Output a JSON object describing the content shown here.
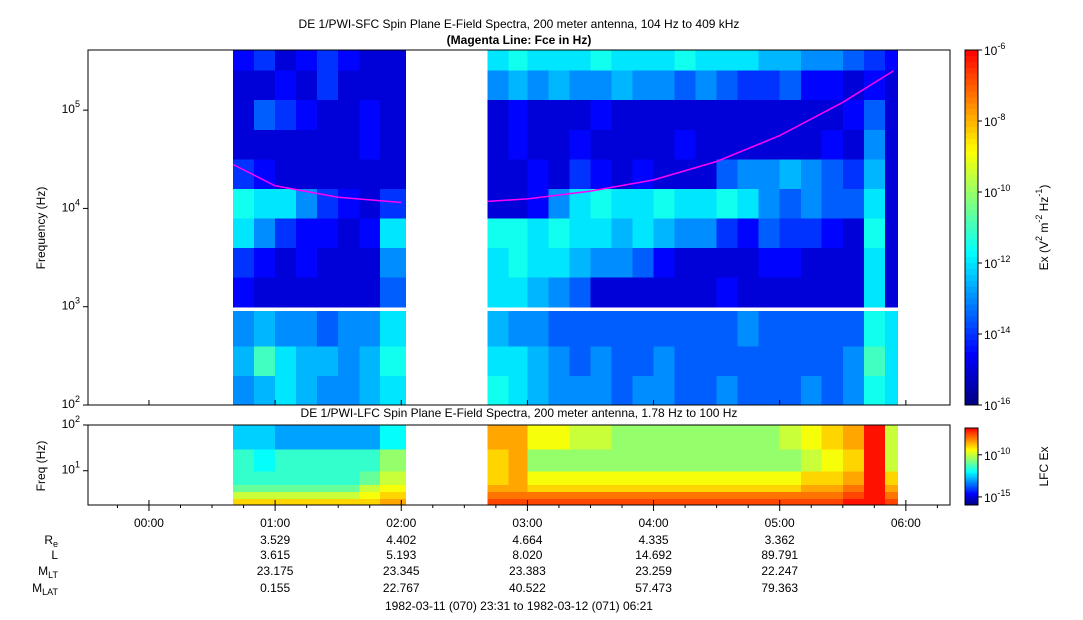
{
  "chart_data": [
    {
      "type": "spectrogram",
      "title": "DE 1/PWI-SFC  Spin Plane E-Field Spectra, 200 meter antenna, 104 Hz to 409 kHz",
      "subtitle": "(Magenta Line: Fce in Hz)",
      "y_label": "Frequency (Hz)",
      "colorbar_label": [
        "Ex (V",
        "2",
        " m",
        "-2",
        " Hz",
        "-1",
        ")"
      ],
      "xlim": [
        -0.4833,
        6.35
      ],
      "ylim": [
        100,
        409000
      ],
      "log_y": true,
      "yticks": [
        {
          "value": 100,
          "label": "10",
          "exp": "2"
        },
        {
          "value": 1000,
          "label": "10",
          "exp": "3"
        },
        {
          "value": 10000,
          "label": "10",
          "exp": "4"
        },
        {
          "value": 100000,
          "label": "10",
          "exp": "5"
        }
      ],
      "zlim": [
        1e-16,
        1e-06
      ],
      "zticks": [
        {
          "value": 1e-06,
          "label": "10",
          "exp": "-6"
        },
        {
          "value": 1e-08,
          "label": "10",
          "exp": "-8"
        },
        {
          "value": 1e-10,
          "label": "10",
          "exp": "-10"
        },
        {
          "value": 1e-12,
          "label": "10",
          "exp": "-12"
        },
        {
          "value": 1e-14,
          "label": "10",
          "exp": "-14"
        },
        {
          "value": 1e-16,
          "label": "10",
          "exp": "-16"
        }
      ],
      "colors": [
        "#000080",
        "#0000ff",
        "#0080ff",
        "#00ffff",
        "#80ff80",
        "#ffff00",
        "#ff8000",
        "#ff0000"
      ],
      "time_bins": [
        0.667,
        0.833,
        1.0,
        1.167,
        1.333,
        1.5,
        1.667,
        1.833,
        2.033,
        2.683,
        2.85,
        3.0,
        3.167,
        3.333,
        3.5,
        3.667,
        3.833,
        4.0,
        4.167,
        4.333,
        4.5,
        4.667,
        4.833,
        5.0,
        5.167,
        5.333,
        5.5,
        5.667,
        5.833,
        5.933
      ],
      "freq_bins": [
        100,
        200,
        400,
        900,
        1000,
        2000,
        4000,
        8000,
        16000,
        32000,
        64000,
        128000,
        256000,
        409000
      ],
      "z": [
        [
          1e-13,
          3e-13,
          1e-12,
          3e-13,
          1e-13,
          1e-13,
          3e-13,
          1e-12,
          null,
          3e-12,
          1e-12,
          3e-13,
          1e-13,
          1e-13,
          1e-13,
          3e-14,
          1e-13,
          1e-13,
          3e-14,
          3e-14,
          1e-13,
          3e-14,
          3e-14,
          3e-14,
          1e-13,
          3e-14,
          1e-13,
          3e-12,
          1e-12
        ],
        [
          3e-13,
          1e-11,
          1e-12,
          3e-13,
          3e-13,
          1e-13,
          3e-13,
          3e-12,
          null,
          1e-12,
          1e-12,
          3e-13,
          1e-13,
          3e-14,
          1e-13,
          3e-14,
          3e-14,
          1e-13,
          3e-14,
          3e-14,
          3e-14,
          3e-14,
          3e-14,
          3e-14,
          3e-14,
          3e-14,
          1e-13,
          1e-11,
          1e-12
        ],
        [
          1e-13,
          3e-13,
          1e-13,
          1e-13,
          3e-14,
          1e-13,
          1e-13,
          1e-12,
          null,
          3e-13,
          1e-13,
          1e-13,
          3e-14,
          3e-14,
          3e-14,
          3e-14,
          3e-14,
          3e-14,
          3e-14,
          3e-14,
          3e-14,
          1e-13,
          3e-14,
          3e-14,
          3e-14,
          3e-14,
          3e-14,
          3e-12,
          1e-12
        ],
        [
          null,
          null,
          null,
          null,
          null,
          null,
          null,
          null,
          null,
          null,
          null,
          null,
          null,
          null,
          null,
          null,
          null,
          null,
          null,
          null,
          null,
          null,
          null,
          null,
          null,
          null,
          null,
          null,
          null
        ],
        [
          3e-15,
          1e-15,
          1e-15,
          1e-15,
          1e-15,
          1e-15,
          1e-15,
          3e-14,
          null,
          1e-12,
          1e-12,
          3e-13,
          1e-13,
          3e-14,
          1e-15,
          1e-15,
          1e-15,
          1e-15,
          1e-15,
          1e-15,
          3e-15,
          1e-15,
          1e-15,
          1e-15,
          1e-15,
          1e-15,
          1e-15,
          1e-12,
          1e-15
        ],
        [
          1e-14,
          3e-15,
          1e-15,
          3e-15,
          1e-15,
          1e-15,
          1e-15,
          1e-13,
          null,
          1e-12,
          3e-12,
          1e-12,
          1e-12,
          3e-13,
          1e-13,
          1e-13,
          3e-14,
          3e-15,
          1e-15,
          1e-15,
          1e-15,
          1e-15,
          3e-15,
          3e-15,
          1e-15,
          1e-15,
          1e-15,
          1e-12,
          1e-15
        ],
        [
          1e-12,
          1e-13,
          1e-14,
          3e-15,
          3e-15,
          1e-15,
          3e-15,
          1e-12,
          null,
          3e-12,
          3e-12,
          1e-12,
          3e-12,
          1e-12,
          1e-12,
          3e-13,
          1e-12,
          3e-13,
          1e-13,
          1e-13,
          1e-14,
          3e-15,
          3e-14,
          1e-14,
          1e-14,
          3e-15,
          1e-15,
          3e-12,
          1e-15
        ],
        [
          3e-12,
          1e-12,
          1e-12,
          1e-13,
          1e-14,
          3e-15,
          1e-15,
          1e-14,
          null,
          1e-15,
          1e-15,
          3e-15,
          1e-13,
          1e-12,
          3e-12,
          1e-12,
          1e-12,
          3e-12,
          1e-12,
          1e-12,
          3e-12,
          1e-12,
          1e-13,
          3e-14,
          1e-13,
          3e-14,
          3e-14,
          1e-12,
          1e-15
        ],
        [
          1e-14,
          3e-15,
          1e-15,
          1e-15,
          1e-15,
          1e-15,
          1e-15,
          1e-15,
          null,
          1e-15,
          1e-15,
          3e-15,
          1e-15,
          1e-14,
          3e-15,
          1e-15,
          3e-15,
          1e-15,
          1e-15,
          1e-15,
          3e-14,
          1e-13,
          1e-13,
          3e-13,
          1e-13,
          3e-14,
          1e-14,
          3e-13,
          1e-15
        ],
        [
          1e-15,
          1e-15,
          1e-15,
          1e-15,
          1e-15,
          1e-15,
          3e-15,
          1e-15,
          null,
          1e-15,
          3e-15,
          1e-15,
          1e-15,
          3e-15,
          1e-15,
          1e-15,
          1e-15,
          1e-15,
          3e-15,
          1e-15,
          1e-15,
          1e-15,
          1e-15,
          1e-15,
          1e-15,
          3e-15,
          1e-15,
          1e-13,
          1e-15
        ],
        [
          1e-15,
          3e-14,
          1e-14,
          3e-15,
          1e-15,
          1e-15,
          3e-15,
          1e-15,
          null,
          1e-15,
          3e-15,
          1e-15,
          1e-15,
          1e-15,
          3e-15,
          1e-15,
          1e-15,
          1e-15,
          1e-15,
          1e-15,
          1e-15,
          1e-15,
          1e-15,
          1e-15,
          1e-15,
          1e-15,
          3e-15,
          3e-14,
          1e-15
        ],
        [
          1e-15,
          1e-15,
          3e-15,
          1e-15,
          1e-14,
          1e-15,
          1e-15,
          1e-15,
          null,
          1e-13,
          3e-13,
          1e-13,
          3e-13,
          1e-13,
          1e-13,
          3e-13,
          1e-13,
          1e-13,
          3e-14,
          1e-13,
          3e-14,
          1e-14,
          1e-14,
          3e-14,
          3e-15,
          3e-15,
          1e-15,
          3e-15,
          1e-15
        ],
        [
          3e-15,
          1e-14,
          1e-15,
          3e-15,
          1e-14,
          3e-15,
          1e-15,
          1e-15,
          null,
          1e-12,
          3e-12,
          1e-12,
          1e-12,
          1e-12,
          3e-12,
          1e-12,
          1e-12,
          1e-12,
          3e-12,
          1e-12,
          1e-12,
          1e-12,
          3e-13,
          3e-13,
          1e-13,
          1e-13,
          3e-14,
          1e-14,
          3e-15
        ]
      ],
      "series": [
        {
          "name": "Fce",
          "color": "#ff00ff",
          "x": [
            0.667,
            1.0,
            1.5,
            2.0,
            2.35,
            2.683,
            3.0,
            3.5,
            4.0,
            4.5,
            5.0,
            5.5,
            5.9
          ],
          "values": [
            28000,
            17000,
            13000,
            11500,
            null,
            11800,
            12500,
            15000,
            19500,
            30000,
            55000,
            120000,
            250000
          ]
        }
      ]
    },
    {
      "type": "spectrogram",
      "title": "DE 1/PWI-LFC  Spin Plane E-Field Spectra, 200 meter antenna, 1.78 Hz to 100 Hz",
      "y_label": "Freq (Hz)",
      "colorbar_label": [
        "LFC Ex"
      ],
      "xlim": [
        -0.4833,
        6.35
      ],
      "xticks": [
        {
          "value": 0,
          "label": "00:00"
        },
        {
          "value": 1,
          "label": "01:00"
        },
        {
          "value": 2,
          "label": "02:00"
        },
        {
          "value": 3,
          "label": "03:00"
        },
        {
          "value": 4,
          "label": "04:00"
        },
        {
          "value": 5,
          "label": "05:00"
        },
        {
          "value": 6,
          "label": "06:00"
        }
      ],
      "ylim": [
        1.78,
        100
      ],
      "log_y": true,
      "yticks": [
        {
          "value": 10,
          "label": "10",
          "exp": "1"
        },
        {
          "value": 100,
          "label": "10",
          "exp": "2"
        }
      ],
      "zlim": [
        1.1e-16,
        1.5e-07
      ],
      "zticks": [
        {
          "value": 1e-10,
          "label": "10",
          "exp": "-10"
        },
        {
          "value": 1e-15,
          "label": "10",
          "exp": "-15"
        }
      ],
      "colors": [
        "#000080",
        "#0000ff",
        "#0080ff",
        "#00ffff",
        "#80ff80",
        "#ffff00",
        "#ff8000",
        "#ff0000"
      ],
      "time_bins": [
        0.667,
        0.833,
        1.0,
        1.167,
        1.333,
        1.5,
        1.667,
        1.833,
        2.033,
        2.683,
        2.85,
        3.0,
        3.167,
        3.333,
        3.5,
        3.667,
        3.833,
        4.0,
        4.167,
        4.333,
        4.5,
        4.667,
        4.833,
        5.0,
        5.167,
        5.333,
        5.5,
        5.667,
        5.833,
        5.933
      ],
      "freq_bins": [
        1.78,
        2.5,
        3.5,
        5,
        10,
        30,
        100
      ],
      "z": [
        [
          1e-09,
          1e-09,
          1e-09,
          1e-09,
          1e-09,
          1e-09,
          1e-09,
          3e-09,
          null,
          3e-08,
          3e-08,
          3e-08,
          3e-08,
          3e-08,
          3e-08,
          3e-08,
          3e-08,
          3e-08,
          3e-08,
          3e-08,
          3e-08,
          3e-08,
          3e-08,
          3e-08,
          3e-08,
          3e-08,
          1e-07,
          1e-07,
          3e-08
        ],
        [
          1e-10,
          1e-10,
          1e-10,
          1e-10,
          1e-10,
          1e-10,
          3e-10,
          1e-09,
          null,
          1e-08,
          1e-08,
          1e-08,
          1e-08,
          1e-08,
          1e-08,
          1e-08,
          1e-08,
          1e-08,
          1e-08,
          1e-08,
          1e-08,
          1e-08,
          1e-08,
          1e-08,
          1e-08,
          1e-08,
          3e-08,
          1e-07,
          1e-08
        ],
        [
          1e-11,
          1e-11,
          1e-11,
          1e-11,
          1e-11,
          1e-11,
          1e-10,
          3e-10,
          null,
          3e-09,
          3e-09,
          1e-09,
          1e-09,
          1e-09,
          1e-09,
          1e-09,
          1e-09,
          1e-09,
          1e-09,
          1e-09,
          1e-09,
          1e-09,
          1e-09,
          1e-09,
          3e-09,
          3e-09,
          1e-08,
          1e-07,
          3e-09
        ],
        [
          3e-12,
          3e-12,
          3e-12,
          3e-12,
          3e-12,
          3e-12,
          1e-11,
          1e-10,
          null,
          1e-09,
          3e-09,
          3e-10,
          3e-10,
          3e-10,
          3e-10,
          3e-10,
          3e-10,
          3e-10,
          3e-10,
          3e-10,
          3e-10,
          3e-10,
          3e-10,
          3e-10,
          1e-09,
          1e-09,
          3e-09,
          1e-07,
          1e-09
        ],
        [
          3e-12,
          1e-12,
          3e-12,
          3e-12,
          3e-12,
          3e-12,
          3e-12,
          3e-11,
          null,
          1e-09,
          3e-09,
          3e-11,
          3e-11,
          3e-11,
          3e-11,
          3e-11,
          3e-11,
          3e-11,
          3e-11,
          3e-11,
          3e-11,
          3e-11,
          3e-11,
          3e-11,
          1e-10,
          3e-10,
          1e-09,
          1e-07,
          1e-10
        ],
        [
          3e-13,
          3e-13,
          1e-13,
          1e-13,
          1e-13,
          1e-13,
          1e-13,
          1e-12,
          null,
          3e-09,
          3e-09,
          3e-10,
          3e-10,
          1e-10,
          1e-10,
          3e-11,
          3e-11,
          3e-11,
          3e-11,
          3e-11,
          3e-11,
          3e-11,
          3e-11,
          1e-10,
          3e-10,
          1e-09,
          3e-09,
          1e-07,
          1e-10
        ]
      ]
    }
  ],
  "ephemeris": {
    "rows": [
      {
        "label": "R",
        "sub": "e",
        "values": [
          "3.529",
          "4.402",
          "4.664",
          "4.335",
          "3.362"
        ]
      },
      {
        "label": "L",
        "values": [
          "3.615",
          "5.193",
          "8.020",
          "14.692",
          "89.791"
        ]
      },
      {
        "label": "M",
        "sub": "LT",
        "values": [
          "23.175",
          "23.345",
          "23.383",
          "23.259",
          "22.247"
        ]
      },
      {
        "label": "M",
        "sub": "LAT",
        "values": [
          "0.155",
          "22.767",
          "40.522",
          "57.473",
          "79.363"
        ]
      }
    ],
    "time_range": "1982-03-11 (070) 23:31 to 1982-03-12 (071) 06:21"
  }
}
